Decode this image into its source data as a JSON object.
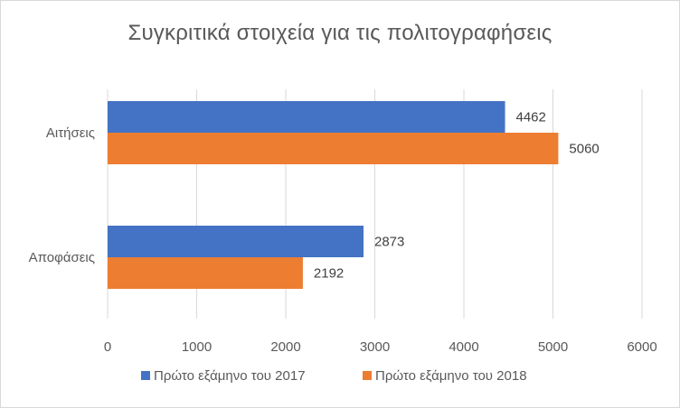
{
  "chart_data": {
    "type": "bar",
    "orientation": "horizontal",
    "title": "Συγκριτικά στοιχεία για τις πολιτογραφήσεις",
    "categories": [
      "Αιτήσεις",
      "Αποφάσεις"
    ],
    "series": [
      {
        "name": "Πρώτο εξάμηνο του 2017",
        "values": [
          4462,
          2873
        ],
        "color": "#4472C4"
      },
      {
        "name": "Πρώτο εξάμηνο του 2018",
        "values": [
          5060,
          2192
        ],
        "color": "#ED7D31"
      }
    ],
    "xlim": [
      0,
      6000
    ],
    "xticks": [
      "0",
      "1000",
      "2000",
      "3000",
      "4000",
      "5000",
      "6000"
    ],
    "grid": true,
    "legend_position": "bottom",
    "data_labels": true
  }
}
